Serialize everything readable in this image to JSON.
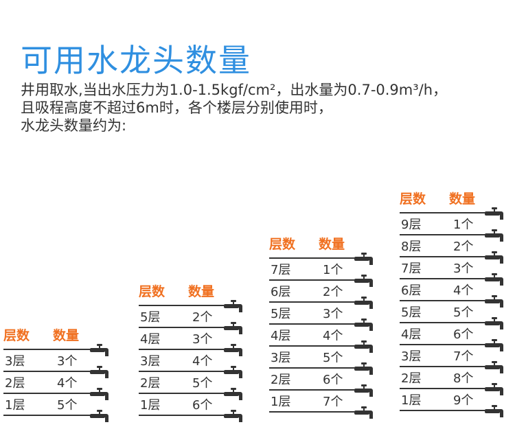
{
  "title": "可用水龙头数量",
  "description": [
    "井用取水,当出水压力为1.0-1.5kgf/cm²，出水量为0.7-0.9m³/h，",
    "且吸程高度不超过6m时，各个楼层分别使用时，",
    "水龙头数量约为:"
  ],
  "tables": [
    {
      "header_floor": "层数",
      "header_qty": "数量",
      "rows": [
        {
          "floor": "3层",
          "qty": "3个"
        },
        {
          "floor": "2层",
          "qty": "4个"
        },
        {
          "floor": "1层",
          "qty": "5个"
        }
      ]
    },
    {
      "header_floor": "层数",
      "header_qty": "数量",
      "rows": [
        {
          "floor": "5层",
          "qty": "2个"
        },
        {
          "floor": "4层",
          "qty": "3个"
        },
        {
          "floor": "3层",
          "qty": "4个"
        },
        {
          "floor": "2层",
          "qty": "5个"
        },
        {
          "floor": "1层",
          "qty": "6个"
        }
      ]
    },
    {
      "header_floor": "层数",
      "header_qty": "数量",
      "rows": [
        {
          "floor": "7层",
          "qty": "1个"
        },
        {
          "floor": "6层",
          "qty": "2个"
        },
        {
          "floor": "5层",
          "qty": "3个"
        },
        {
          "floor": "4层",
          "qty": "4个"
        },
        {
          "floor": "3层",
          "qty": "5个"
        },
        {
          "floor": "2层",
          "qty": "6个"
        },
        {
          "floor": "1层",
          "qty": "7个"
        }
      ]
    },
    {
      "header_floor": "层数",
      "header_qty": "数量",
      "rows": [
        {
          "floor": "9层",
          "qty": "1个"
        },
        {
          "floor": "8层",
          "qty": "2个"
        },
        {
          "floor": "7层",
          "qty": "3个"
        },
        {
          "floor": "6层",
          "qty": "4个"
        },
        {
          "floor": "5层",
          "qty": "5个"
        },
        {
          "floor": "4层",
          "qty": "6个"
        },
        {
          "floor": "3层",
          "qty": "7个"
        },
        {
          "floor": "2层",
          "qty": "8个"
        },
        {
          "floor": "1层",
          "qty": "9个"
        }
      ]
    }
  ],
  "colors": {
    "title": "#2f8fe0",
    "header": "#f07020",
    "line": "#333333"
  },
  "icons": {
    "faucet": "faucet-icon"
  }
}
